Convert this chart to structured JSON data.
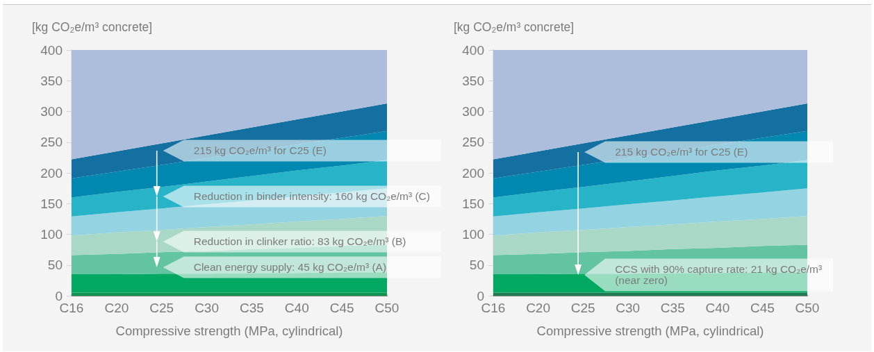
{
  "chart_data": [
    {
      "type": "area",
      "stacked": true,
      "ylabel": "[kg CO₂e/m³ concrete]",
      "xlabel": "Compressive strength (MPa, cylindrical)",
      "categories": [
        "C16",
        "C20",
        "C25",
        "C30",
        "C35",
        "C40",
        "C45",
        "C50"
      ],
      "ylim": [
        0,
        400
      ],
      "yticks": [
        0,
        50,
        100,
        150,
        200,
        250,
        300,
        350,
        400
      ],
      "series": [
        {
          "color": "#0e9351",
          "values": [
            5,
            5,
            5,
            5,
            5,
            5,
            5,
            5
          ]
        },
        {
          "color": "#00a862",
          "values": [
            30,
            30,
            31,
            31,
            32,
            32,
            33,
            33
          ]
        },
        {
          "color": "#62c4a0",
          "values": [
            31,
            33,
            35,
            37,
            39,
            41,
            43,
            45
          ]
        },
        {
          "color": "#a9d9c6",
          "values": [
            32,
            35,
            36,
            39,
            40,
            43,
            44,
            47
          ]
        },
        {
          "color": "#94d3e2",
          "values": [
            31,
            33,
            35,
            37,
            39,
            41,
            43,
            45
          ]
        },
        {
          "color": "#27b3c8",
          "values": [
            31,
            33,
            35,
            37,
            40,
            42,
            44,
            46
          ]
        },
        {
          "color": "#0088b1",
          "values": [
            31,
            33,
            36,
            38,
            40,
            42,
            45,
            47
          ]
        },
        {
          "color": "#1370a1",
          "values": [
            31,
            33,
            35,
            37,
            39,
            41,
            43,
            45
          ]
        },
        {
          "color": "#acbedc",
          "values": [
            178,
            165,
            152,
            139,
            126,
            113,
            100,
            87
          ]
        }
      ],
      "annotations": [
        "215 kg CO₂e/m³ for C25 (E)",
        "Reduction in binder intensity: 160 kg CO₂e/m³ (C)",
        "Reduction in clinker ratio: 83 kg CO₂e/m³ (B)",
        "Clean energy supply: 45 kg CO₂e/m³ (A)"
      ]
    },
    {
      "type": "area",
      "stacked": true,
      "ylabel": "[kg CO₂e/m³ concrete]",
      "xlabel": "Compressive strength (MPa, cylindrical)",
      "categories": [
        "C16",
        "C20",
        "C25",
        "C30",
        "C35",
        "C40",
        "C45",
        "C50"
      ],
      "ylim": [
        0,
        400
      ],
      "yticks": [
        0,
        50,
        100,
        150,
        200,
        250,
        300,
        350,
        400
      ],
      "series": [
        {
          "color": "#1f7a52",
          "values": [
            5,
            5,
            5,
            5,
            5,
            5,
            5,
            5
          ]
        },
        {
          "color": "#00a862",
          "values": [
            30,
            30,
            31,
            31,
            32,
            32,
            33,
            33
          ]
        },
        {
          "color": "#62c4a0",
          "values": [
            31,
            33,
            35,
            37,
            39,
            41,
            43,
            45
          ]
        },
        {
          "color": "#a9d9c6",
          "values": [
            32,
            35,
            36,
            39,
            40,
            43,
            44,
            47
          ]
        },
        {
          "color": "#94d3e2",
          "values": [
            31,
            33,
            35,
            37,
            39,
            41,
            43,
            45
          ]
        },
        {
          "color": "#27b3c8",
          "values": [
            31,
            33,
            35,
            37,
            40,
            42,
            44,
            46
          ]
        },
        {
          "color": "#0088b1",
          "values": [
            31,
            33,
            36,
            38,
            40,
            42,
            45,
            47
          ]
        },
        {
          "color": "#1370a1",
          "values": [
            31,
            33,
            35,
            37,
            39,
            41,
            43,
            45
          ]
        },
        {
          "color": "#acbedc",
          "values": [
            178,
            165,
            152,
            139,
            126,
            113,
            100,
            87
          ]
        }
      ],
      "annotations": [
        "215 kg CO₂e/m³ for C25 (E)",
        "CCS with 90% capture rate: 21 kg CO₂e/m³\n(near zero)"
      ]
    }
  ]
}
